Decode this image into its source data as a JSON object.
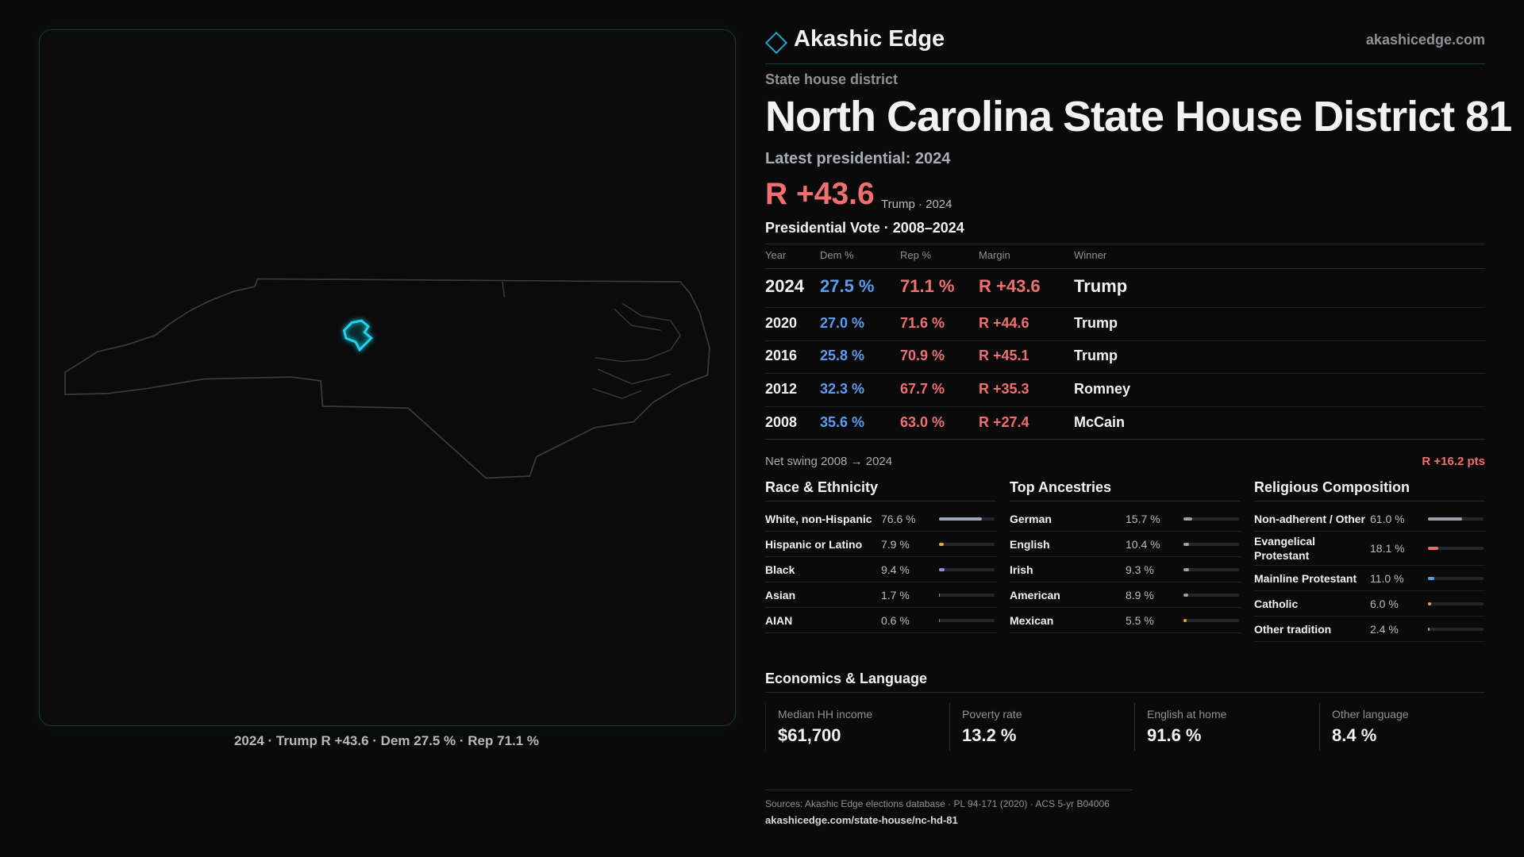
{
  "header": {
    "brand": "Akashic Edge",
    "site": "akashicedge.com"
  },
  "district": {
    "kind": "State house district",
    "title": "North Carolina State House District 81",
    "latest_label": "Latest presidential: 2024",
    "margin": "R +43.6",
    "margin_note": "Trump · 2024"
  },
  "map": {
    "caption": "2024 · Trump R +43.6 · Dem 27.5 % · Rep 71.1 %"
  },
  "vote_table": {
    "title": "Presidential Vote · 2008–2024",
    "columns": [
      "Year",
      "Dem %",
      "Rep %",
      "Margin",
      "Winner"
    ],
    "rows": [
      [
        "2024",
        "27.5 %",
        "71.1 %",
        "R +43.6",
        "Trump"
      ],
      [
        "2020",
        "27.0 %",
        "71.6 %",
        "R +44.6",
        "Trump"
      ],
      [
        "2016",
        "25.8 %",
        "70.9 %",
        "R +45.1",
        "Trump"
      ],
      [
        "2012",
        "32.3 %",
        "67.7 %",
        "R +35.3",
        "Romney"
      ],
      [
        "2008",
        "35.6 %",
        "63.0 %",
        "R +27.4",
        "McCain"
      ]
    ]
  },
  "swing": {
    "label": "Net swing 2008 → 2024",
    "value": "R +16.2 pts"
  },
  "race": {
    "title": "Race & Ethnicity",
    "rows": [
      {
        "name": "White, non-Hispanic",
        "value": 76.6,
        "label": "76.6 %",
        "color": "#9aa6bd"
      },
      {
        "name": "Hispanic or Latino",
        "value": 7.9,
        "label": "7.9 %",
        "color": "#e8a23a"
      },
      {
        "name": "Black",
        "value": 9.4,
        "label": "9.4 %",
        "color": "#9b86e8"
      },
      {
        "name": "Asian",
        "value": 1.7,
        "label": "1.7 %",
        "color": "#3fbf8f"
      },
      {
        "name": "AIAN",
        "value": 0.6,
        "label": "0.6 %",
        "color": "#7a7f8a"
      }
    ]
  },
  "ancestry": {
    "title": "Top Ancestries",
    "rows": [
      {
        "name": "German",
        "value": 15.7,
        "label": "15.7 %",
        "color": "#9aa0aa"
      },
      {
        "name": "English",
        "value": 10.4,
        "label": "10.4 %",
        "color": "#9aa0aa"
      },
      {
        "name": "Irish",
        "value": 9.3,
        "label": "9.3 %",
        "color": "#9aa0aa"
      },
      {
        "name": "American",
        "value": 8.9,
        "label": "8.9 %",
        "color": "#9aa0aa"
      },
      {
        "name": "Mexican",
        "value": 5.5,
        "label": "5.5 %",
        "color": "#e8a23a"
      }
    ]
  },
  "religion": {
    "title": "Religious Composition",
    "rows": [
      {
        "name": "Non-adherent / Other",
        "value": 61.0,
        "label": "61.0 %",
        "color": "#9aa0aa"
      },
      {
        "name": "Evangelical Protestant",
        "value": 18.1,
        "label": "18.1 %",
        "color": "#f06a6a"
      },
      {
        "name": "Mainline Protestant",
        "value": 11.0,
        "label": "11.0 %",
        "color": "#5b9cf0"
      },
      {
        "name": "Catholic",
        "value": 6.0,
        "label": "6.0 %",
        "color": "#e8a23a"
      },
      {
        "name": "Other tradition",
        "value": 2.4,
        "label": "2.4 %",
        "color": "#9aa0aa"
      }
    ]
  },
  "economics": {
    "title": "Economics & Language",
    "cells": [
      {
        "label": "Median HH income",
        "value": "$61,700"
      },
      {
        "label": "Poverty rate",
        "value": "13.2 %"
      },
      {
        "label": "English at home",
        "value": "91.6 %"
      },
      {
        "label": "Other language",
        "value": "8.4 %"
      }
    ]
  },
  "footer": {
    "sources": "Sources: Akashic Edge elections database · PL 94-171 (2020) · ACS 5-yr B04006",
    "url": "akashicedge.com/state-house/nc-hd-81"
  }
}
